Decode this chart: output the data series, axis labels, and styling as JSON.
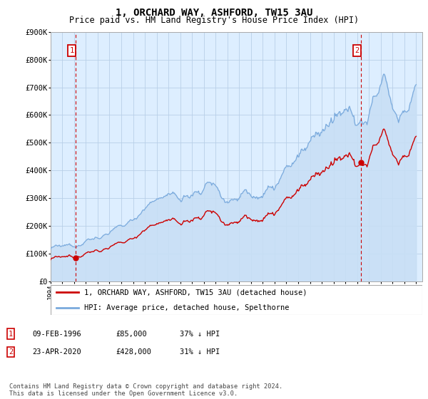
{
  "title": "1, ORCHARD WAY, ASHFORD, TW15 3AU",
  "subtitle": "Price paid vs. HM Land Registry's House Price Index (HPI)",
  "ylim": [
    0,
    900000
  ],
  "yticks": [
    0,
    100000,
    200000,
    300000,
    400000,
    500000,
    600000,
    700000,
    800000,
    900000
  ],
  "ytick_labels": [
    "£0",
    "£100K",
    "£200K",
    "£300K",
    "£400K",
    "£500K",
    "£600K",
    "£700K",
    "£800K",
    "£900K"
  ],
  "hpi_color": "#7aaadd",
  "hpi_fill_color": "#c8dff5",
  "price_color": "#cc0000",
  "sale1_t": 1996.1,
  "sale1_p": 85000,
  "sale2_t": 2020.3,
  "sale2_p": 428000,
  "legend_line1": "1, ORCHARD WAY, ASHFORD, TW15 3AU (detached house)",
  "legend_line2": "HPI: Average price, detached house, Spelthorne",
  "footer": "Contains HM Land Registry data © Crown copyright and database right 2024.\nThis data is licensed under the Open Government Licence v3.0.",
  "title_fontsize": 10,
  "subtitle_fontsize": 8.5,
  "grid_color": "#b8cfe8",
  "bg_color": "#ddeeff",
  "plot_bg": "#ddeeff"
}
